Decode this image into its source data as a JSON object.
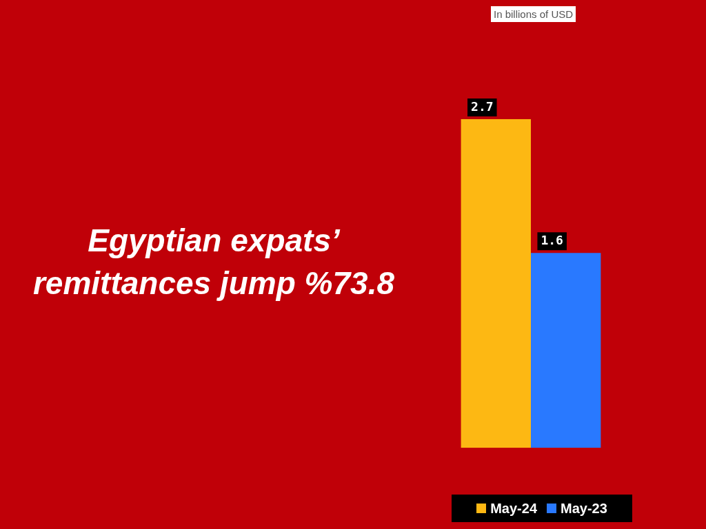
{
  "chart_data": {
    "type": "bar",
    "title": "Egyptian expats’ remittances jump %73.8",
    "annotations": [
      "In billions of USD"
    ],
    "categories": [
      null
    ],
    "series": [
      {
        "name": "May-24",
        "color": "#fdb813",
        "values": [
          2.7
        ]
      },
      {
        "name": "May-23",
        "color": "#2979ff",
        "values": [
          1.6
        ]
      }
    ],
    "data_labels": true,
    "legend": "bottom"
  }
}
